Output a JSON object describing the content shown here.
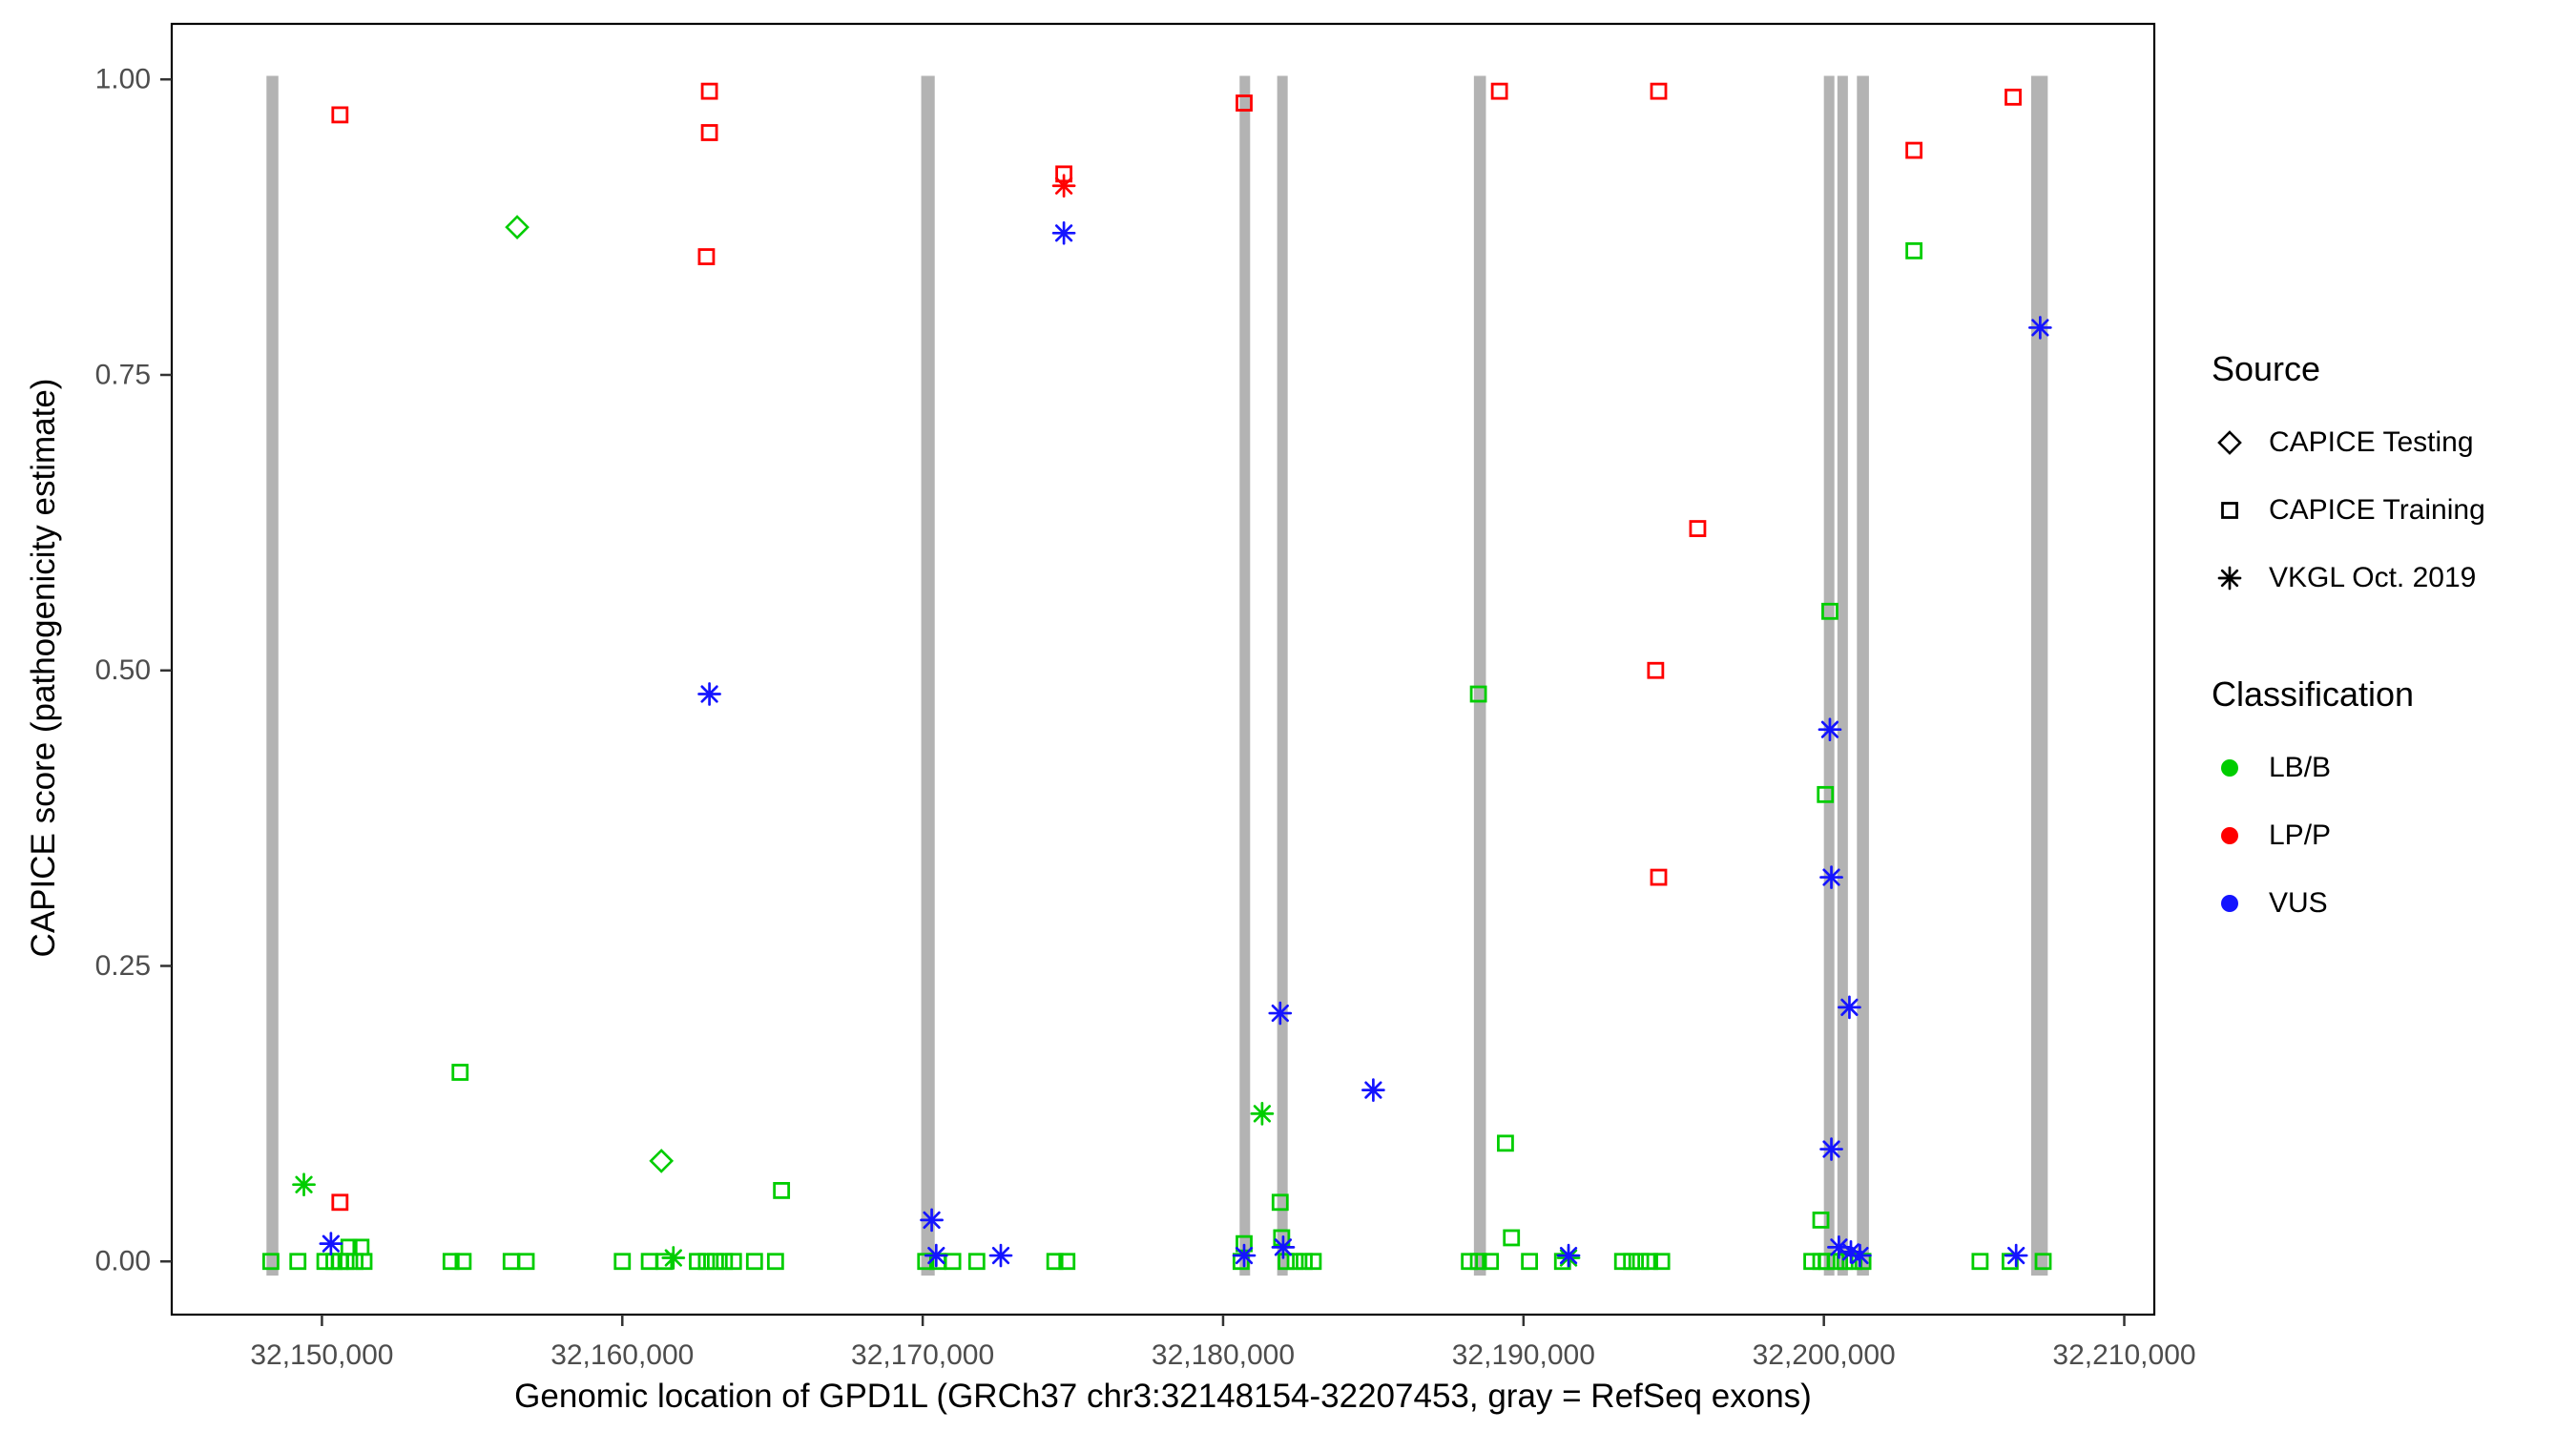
{
  "chart_data": {
    "type": "scatter",
    "title": "",
    "xlabel": "Genomic location of GPD1L (GRCh37 chr3:32148154-32207453, gray = RefSeq exons)",
    "ylabel": "CAPICE score (pathogenicity estimate)",
    "x_domain": [
      32145000,
      32211000
    ],
    "y_domain": [
      -0.045,
      1.047
    ],
    "x_ticks": [
      {
        "v": 32150000,
        "label": "32,150,000"
      },
      {
        "v": 32160000,
        "label": "32,160,000"
      },
      {
        "v": 32170000,
        "label": "32,170,000"
      },
      {
        "v": 32180000,
        "label": "32,180,000"
      },
      {
        "v": 32190000,
        "label": "32,190,000"
      },
      {
        "v": 32200000,
        "label": "32,200,000"
      },
      {
        "v": 32210000,
        "label": "32,210,000"
      }
    ],
    "y_ticks": [
      {
        "v": 0.0,
        "label": "0.00"
      },
      {
        "v": 0.25,
        "label": "0.25"
      },
      {
        "v": 0.5,
        "label": "0.50"
      },
      {
        "v": 0.75,
        "label": "0.75"
      },
      {
        "v": 1.0,
        "label": "1.00"
      }
    ],
    "grid": false,
    "exon_color": "#b3b3b3",
    "exons": [
      [
        32148154,
        32148550
      ],
      [
        32169950,
        32170400
      ],
      [
        32180550,
        32180900
      ],
      [
        32181800,
        32182150
      ],
      [
        32188350,
        32188750
      ],
      [
        32200000,
        32200350
      ],
      [
        32200450,
        32200800
      ],
      [
        32201100,
        32201500
      ],
      [
        32206900,
        32207453
      ]
    ],
    "colors": {
      "LB/B": "#00cd00",
      "LP/P": "#ff0000",
      "VUS": "#1414ff"
    },
    "shapes": {
      "CAPICE Testing": "diamond",
      "CAPICE Training": "square",
      "VKGL Oct. 2019": "asterisk"
    },
    "series": [
      {
        "source": "CAPICE Testing",
        "classification": "LB/B",
        "points": [
          [
            32156500,
            0.875
          ],
          [
            32161300,
            0.085
          ]
        ]
      },
      {
        "source": "CAPICE Training",
        "classification": "LB/B",
        "points": [
          [
            32154600,
            0.16
          ],
          [
            32165300,
            0.06
          ],
          [
            32150900,
            0.012
          ],
          [
            32151300,
            0.012
          ],
          [
            32180700,
            0.015
          ],
          [
            32181900,
            0.05
          ],
          [
            32181950,
            0.02
          ],
          [
            32188500,
            0.48
          ],
          [
            32189400,
            0.1
          ],
          [
            32189600,
            0.02
          ],
          [
            32200200,
            0.55
          ],
          [
            32200050,
            0.395
          ],
          [
            32199900,
            0.035
          ],
          [
            32203000,
            0.855
          ],
          [
            32148300,
            0.0
          ],
          [
            32149200,
            0.0
          ],
          [
            32150100,
            0.0
          ],
          [
            32150400,
            0.0
          ],
          [
            32150600,
            0.0
          ],
          [
            32150800,
            0.0
          ],
          [
            32151100,
            0.0
          ],
          [
            32151400,
            0.0
          ],
          [
            32154300,
            0.0
          ],
          [
            32154700,
            0.0
          ],
          [
            32156300,
            0.0
          ],
          [
            32156800,
            0.0
          ],
          [
            32160000,
            0.0
          ],
          [
            32160900,
            0.0
          ],
          [
            32161400,
            0.0
          ],
          [
            32162500,
            0.0
          ],
          [
            32162800,
            0.0
          ],
          [
            32163100,
            0.0
          ],
          [
            32163400,
            0.0
          ],
          [
            32163700,
            0.0
          ],
          [
            32164400,
            0.0
          ],
          [
            32165100,
            0.0
          ],
          [
            32170100,
            0.0
          ],
          [
            32170500,
            0.0
          ],
          [
            32171000,
            0.0
          ],
          [
            32171800,
            0.0
          ],
          [
            32174400,
            0.0
          ],
          [
            32174800,
            0.0
          ],
          [
            32180600,
            0.0
          ],
          [
            32182100,
            0.0
          ],
          [
            32182400,
            0.0
          ],
          [
            32182700,
            0.0
          ],
          [
            32183000,
            0.0
          ],
          [
            32188200,
            0.0
          ],
          [
            32188500,
            0.0
          ],
          [
            32188900,
            0.0
          ],
          [
            32190200,
            0.0
          ],
          [
            32191300,
            0.0
          ],
          [
            32193300,
            0.0
          ],
          [
            32193600,
            0.0
          ],
          [
            32193900,
            0.0
          ],
          [
            32194200,
            0.0
          ],
          [
            32194600,
            0.0
          ],
          [
            32199600,
            0.0
          ],
          [
            32199900,
            0.0
          ],
          [
            32200100,
            0.0
          ],
          [
            32200400,
            0.0
          ],
          [
            32200700,
            0.0
          ],
          [
            32201000,
            0.0
          ],
          [
            32201300,
            0.0
          ],
          [
            32205200,
            0.0
          ],
          [
            32206200,
            0.0
          ],
          [
            32207300,
            0.0
          ]
        ]
      },
      {
        "source": "CAPICE Training",
        "classification": "LP/P",
        "points": [
          [
            32150600,
            0.97
          ],
          [
            32150600,
            0.05
          ],
          [
            32162900,
            0.99
          ],
          [
            32162900,
            0.955
          ],
          [
            32162800,
            0.85
          ],
          [
            32174700,
            0.92
          ],
          [
            32180700,
            0.98
          ],
          [
            32189200,
            0.99
          ],
          [
            32194500,
            0.99
          ],
          [
            32195800,
            0.62
          ],
          [
            32194400,
            0.5
          ],
          [
            32194500,
            0.325
          ],
          [
            32203000,
            0.94
          ],
          [
            32206300,
            0.985
          ]
        ]
      },
      {
        "source": "VKGL Oct. 2019",
        "classification": "LB/B",
        "points": [
          [
            32149400,
            0.065
          ],
          [
            32161700,
            0.003
          ],
          [
            32181300,
            0.125
          ],
          [
            32191500,
            0.003
          ]
        ]
      },
      {
        "source": "VKGL Oct. 2019",
        "classification": "LP/P",
        "points": [
          [
            32174700,
            0.91
          ]
        ]
      },
      {
        "source": "VKGL Oct. 2019",
        "classification": "VUS",
        "points": [
          [
            32150300,
            0.015
          ],
          [
            32162900,
            0.48
          ],
          [
            32170300,
            0.035
          ],
          [
            32170450,
            0.005
          ],
          [
            32172600,
            0.005
          ],
          [
            32174700,
            0.87
          ],
          [
            32180700,
            0.005
          ],
          [
            32181900,
            0.21
          ],
          [
            32182000,
            0.012
          ],
          [
            32185000,
            0.145
          ],
          [
            32191500,
            0.005
          ],
          [
            32200200,
            0.45
          ],
          [
            32200250,
            0.325
          ],
          [
            32200850,
            0.215
          ],
          [
            32200250,
            0.095
          ],
          [
            32200500,
            0.012
          ],
          [
            32200900,
            0.008
          ],
          [
            32201200,
            0.005
          ],
          [
            32206400,
            0.005
          ],
          [
            32207200,
            0.79
          ]
        ]
      }
    ]
  },
  "legend": {
    "source": {
      "title": "Source",
      "items": [
        {
          "label": "CAPICE Testing",
          "shape": "diamond"
        },
        {
          "label": "CAPICE Training",
          "shape": "square"
        },
        {
          "label": "VKGL Oct. 2019",
          "shape": "asterisk"
        }
      ]
    },
    "classification": {
      "title": "Classification",
      "items": [
        {
          "label": "LB/B",
          "color": "#00cd00"
        },
        {
          "label": "LP/P",
          "color": "#ff0000"
        },
        {
          "label": "VUS",
          "color": "#1414ff"
        }
      ]
    }
  }
}
